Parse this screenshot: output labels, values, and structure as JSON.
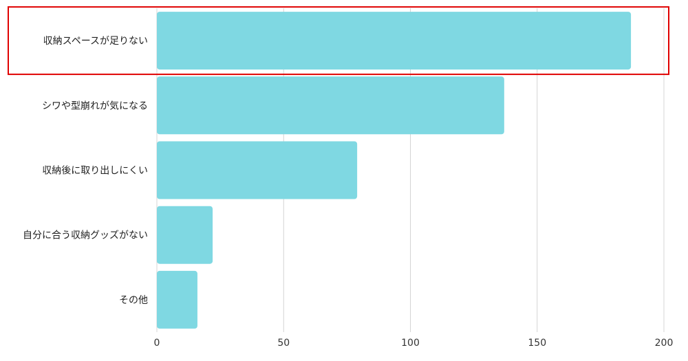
{
  "chart_data": {
    "type": "bar",
    "orientation": "horizontal",
    "categories": [
      "収納スペースが足りない",
      "シワや型崩れが気になる",
      "収納後に取り出しにくい",
      "自分に合う収納グッズがない",
      "その他"
    ],
    "values": [
      187,
      137,
      79,
      22,
      16
    ],
    "xlim": [
      0,
      200
    ],
    "xticks": [
      "0",
      "50",
      "100",
      "150",
      "200"
    ],
    "grid": "vertical",
    "highlighted_category": "収納スペースが足りない",
    "colors": {
      "bar": "#7fd8e2",
      "grid": "#d4d4d4",
      "highlight_border": "#e00000"
    }
  }
}
